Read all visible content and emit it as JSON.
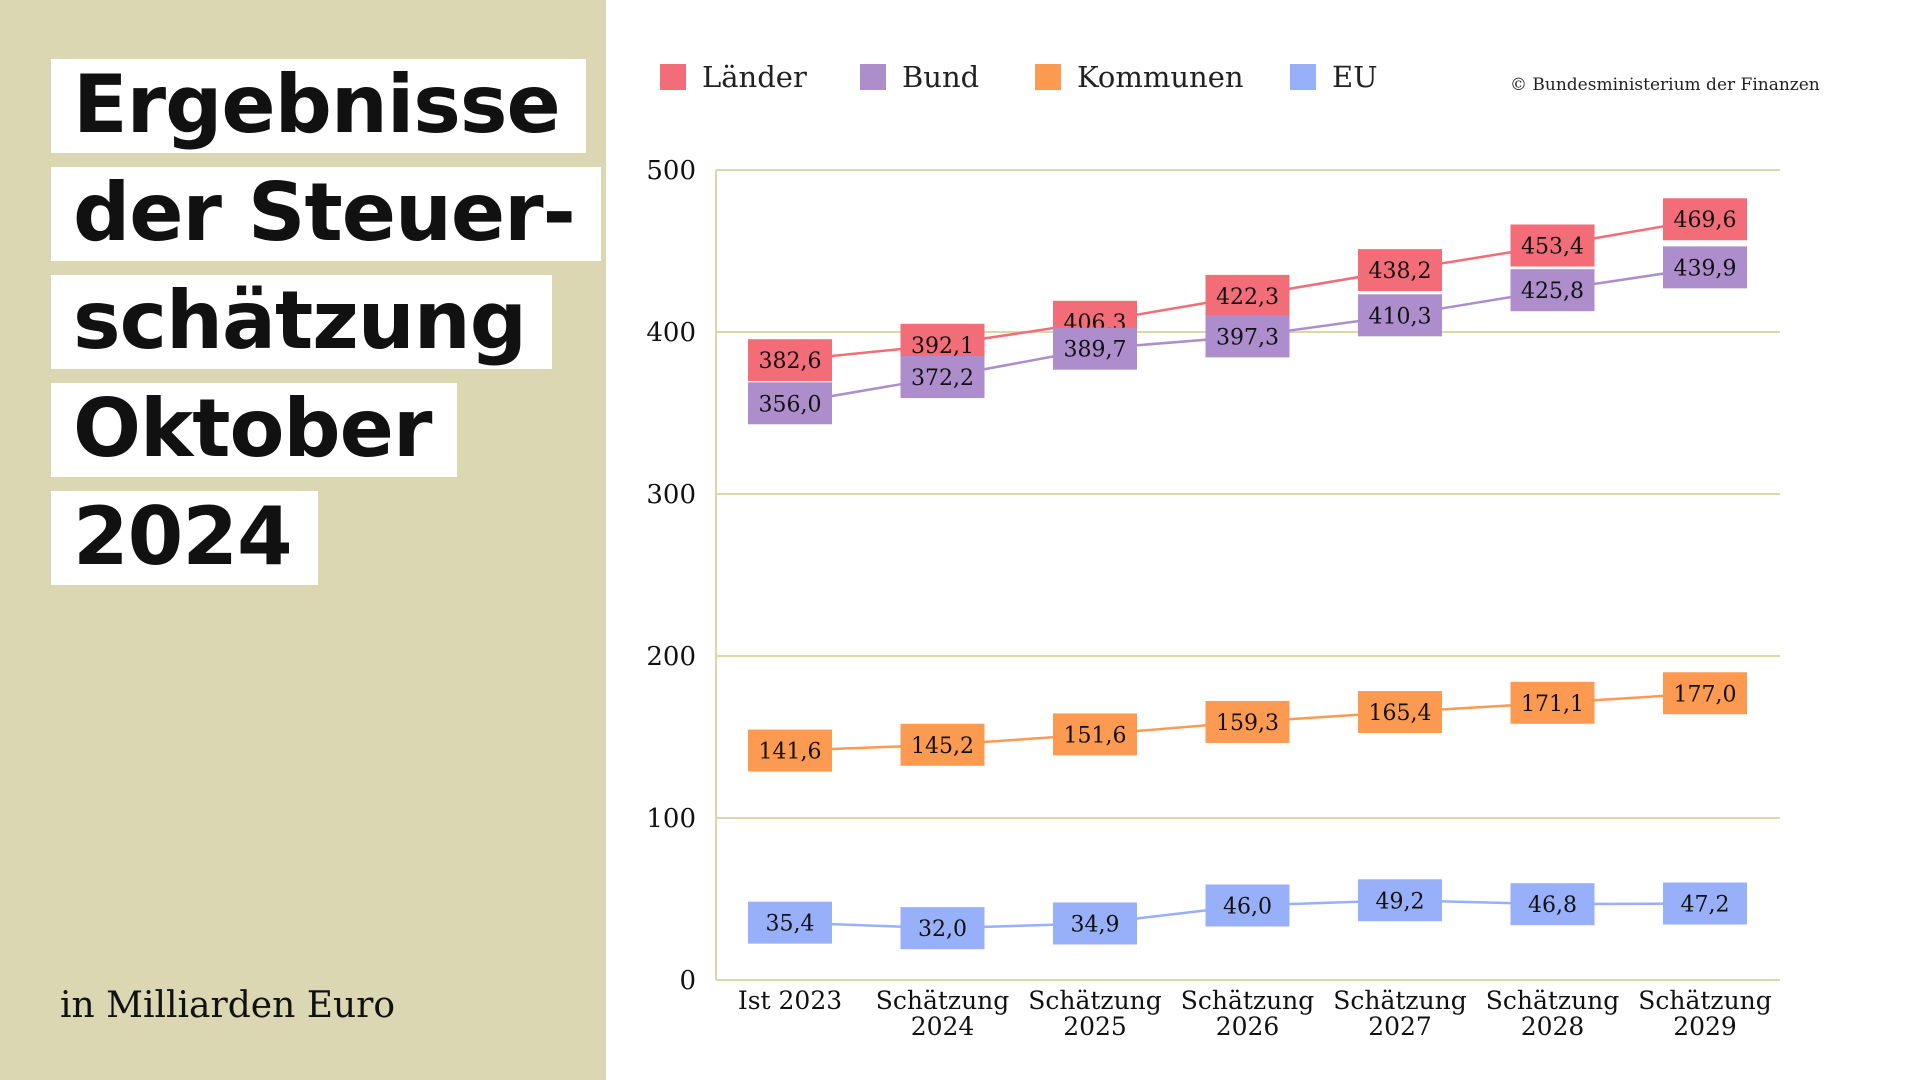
{
  "title_lines": [
    "Ergebnisse",
    "der Steuer-",
    "schätzung",
    "Oktober",
    "2024"
  ],
  "unit_note": "in Milliarden Euro",
  "copyright": "© Bundesministerium der Finanzen",
  "chart_data": {
    "type": "line",
    "categories": [
      [
        "Ist 2023"
      ],
      [
        "Schätzung",
        "2024"
      ],
      [
        "Schätzung",
        "2025"
      ],
      [
        "Schätzung",
        "2026"
      ],
      [
        "Schätzung",
        "2027"
      ],
      [
        "Schätzung",
        "2028"
      ],
      [
        "Schätzung",
        "2029"
      ]
    ],
    "ylim": [
      0,
      500
    ],
    "yticks": [
      0,
      100,
      200,
      300,
      400,
      500
    ],
    "grid": true,
    "legend_position": "top",
    "series": [
      {
        "name": "Länder",
        "color": "#f26d78",
        "values": [
          382.6,
          392.1,
          406.3,
          422.3,
          438.2,
          453.4,
          469.6
        ],
        "labels": [
          "382,6",
          "392,1",
          "406,3",
          "422,3",
          "438,2",
          "453,4",
          "469,6"
        ]
      },
      {
        "name": "Bund",
        "color": "#ad8dcc",
        "values": [
          356.0,
          372.2,
          389.7,
          397.3,
          410.3,
          425.8,
          439.9
        ],
        "labels": [
          "356,0",
          "372,2",
          "389,7",
          "397,3",
          "410,3",
          "425,8",
          "439,9"
        ]
      },
      {
        "name": "Kommunen",
        "color": "#fd9a52",
        "values": [
          141.6,
          145.2,
          151.6,
          159.3,
          165.4,
          171.1,
          177.0
        ],
        "labels": [
          "141,6",
          "145,2",
          "151,6",
          "159,3",
          "165,4",
          "171,1",
          "177,0"
        ]
      },
      {
        "name": "EU",
        "color": "#98b0f9",
        "values": [
          35.4,
          32.0,
          34.9,
          46.0,
          49.2,
          46.8,
          47.2
        ],
        "labels": [
          "35,4",
          "32,0",
          "34,9",
          "46,0",
          "49,2",
          "46,8",
          "47,2"
        ]
      }
    ]
  }
}
